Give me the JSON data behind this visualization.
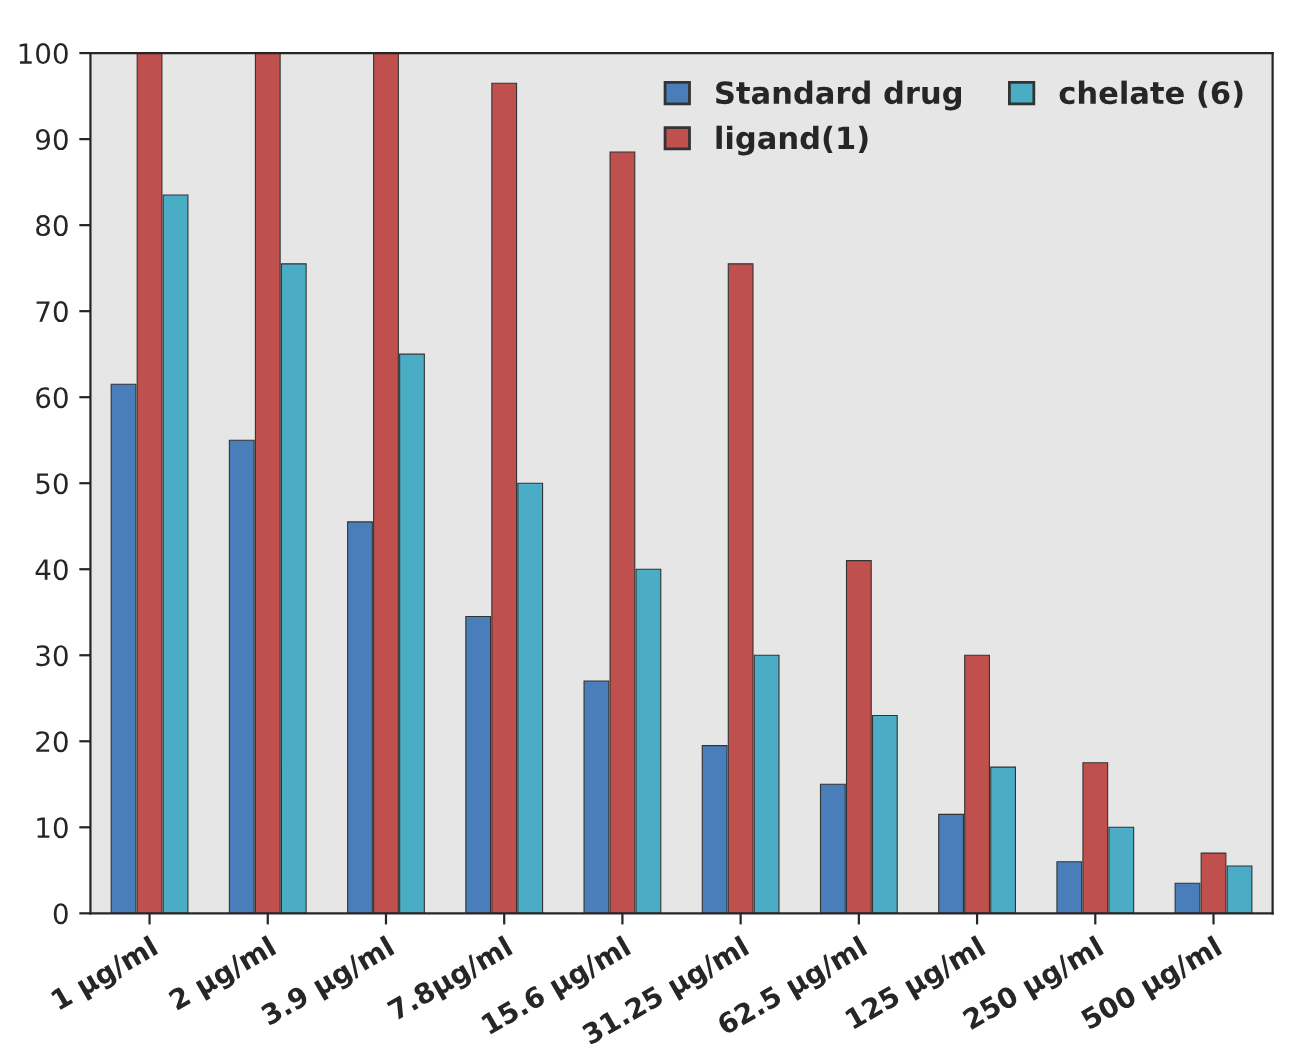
{
  "chart_data": {
    "type": "bar",
    "categories": [
      "1 µg/ml",
      "2 µg/ml",
      "3.9 µg/ml",
      "7.8µg/ml",
      "15.6 µg/ml",
      "31.25 µg/ml",
      "62.5 µg/ml",
      "125 µg/ml",
      "250 µg/ml",
      "500 µg/ml"
    ],
    "series": [
      {
        "name": "Standard drug",
        "color": "#4a7ebb",
        "values": [
          61.5,
          55,
          45.5,
          34.5,
          27,
          19.5,
          15,
          11.5,
          6,
          3.5
        ]
      },
      {
        "name": "ligand(1)",
        "color": "#c0504d",
        "values": [
          100,
          100,
          100,
          96.5,
          88.5,
          75.5,
          41,
          30,
          17.5,
          7
        ]
      },
      {
        "name": "chelate (6)",
        "color": "#4bacc6",
        "values": [
          83.5,
          75.5,
          65,
          50,
          40,
          30,
          23,
          17,
          10,
          5.5
        ]
      }
    ],
    "ylim": [
      0,
      100
    ],
    "yticks": [
      0,
      10,
      20,
      30,
      40,
      50,
      60,
      70,
      80,
      90,
      100
    ],
    "grid": false,
    "legend": "top right"
  }
}
